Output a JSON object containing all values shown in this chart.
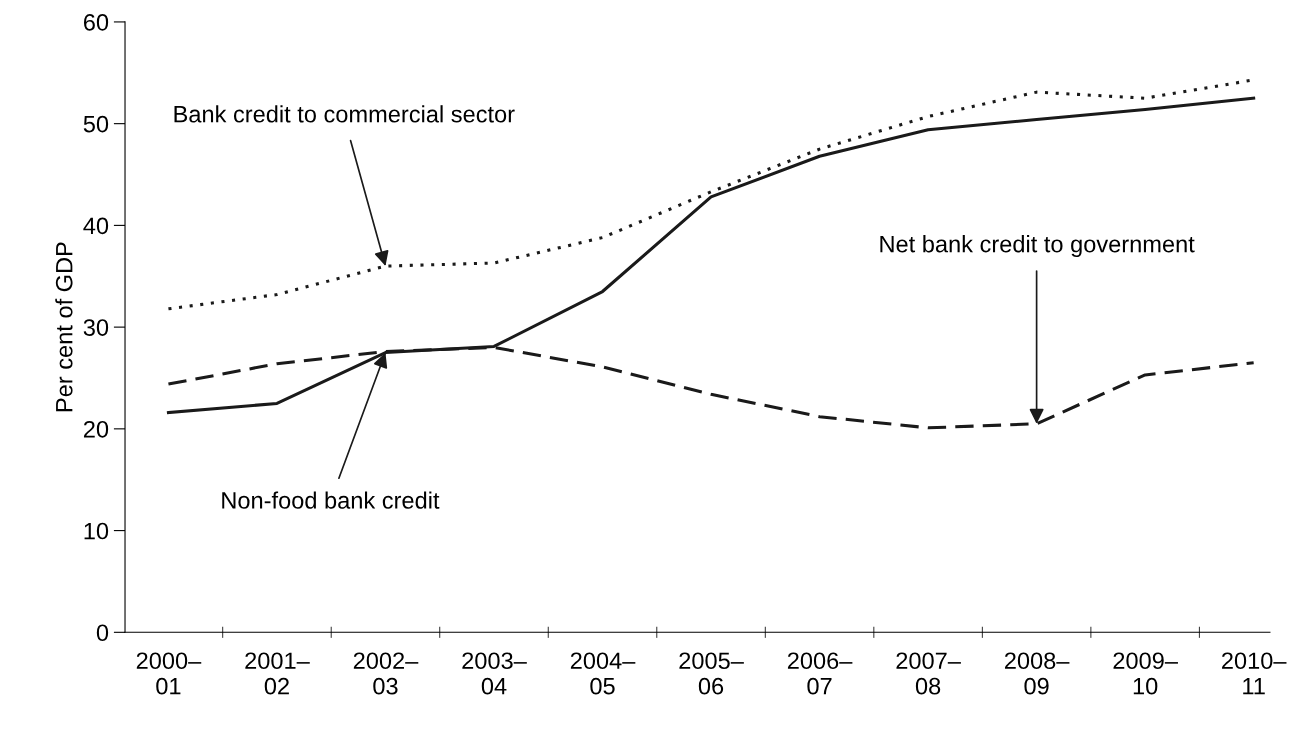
{
  "chart_data": {
    "type": "line",
    "ylabel": "Per cent of GDP",
    "categories": [
      "2000–\n01",
      "2001–\n02",
      "2002–\n03",
      "2003–\n04",
      "2004–\n05",
      "2005–\n06",
      "2006–\n07",
      "2007–\n08",
      "2008–\n09",
      "2009–\n10",
      "2010–\n11"
    ],
    "series": [
      {
        "color": "#1a1a1a",
        "line_style": "dotted",
        "values": [
          31.8,
          33.2,
          36.0,
          36.3,
          38.8,
          43.3,
          47.5,
          50.7,
          53.1,
          52.5,
          54.3
        ]
      },
      {
        "color": "#1a1a1a",
        "line_style": "solid",
        "values": [
          21.6,
          22.5,
          27.5,
          28.1,
          33.5,
          42.8,
          46.8,
          49.4,
          50.4,
          51.4,
          52.5
        ]
      },
      {
        "color": "#1a1a1a",
        "line_style": "dashed",
        "values": [
          24.4,
          26.4,
          27.6,
          28.0,
          26.1,
          23.4,
          21.2,
          20.1,
          20.5,
          25.3,
          26.5
        ]
      }
    ],
    "annotations": [
      {
        "text": "Bank credit to commercial sector",
        "x": "2002–\n03",
        "y": 36.0
      },
      {
        "text": "Non-food bank credit",
        "x": "2002–\n03",
        "y": 27.5
      },
      {
        "text": "Net bank credit to government",
        "x": "2008–\n09",
        "y": 20.5
      }
    ],
    "ylim": [
      0,
      60
    ],
    "yticks": [
      0,
      10,
      20,
      30,
      40,
      50,
      60
    ],
    "grid": false,
    "legend": false,
    "marker": "none"
  }
}
